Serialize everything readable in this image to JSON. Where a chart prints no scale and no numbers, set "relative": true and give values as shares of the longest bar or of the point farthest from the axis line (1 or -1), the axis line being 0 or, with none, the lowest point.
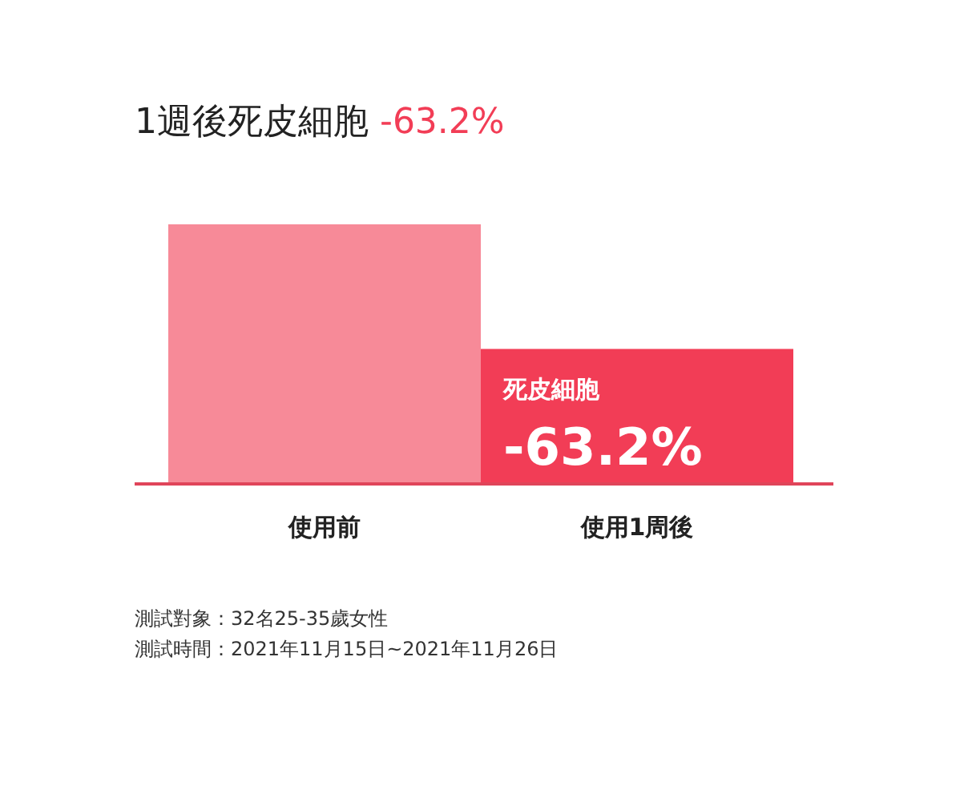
{
  "chart_data": {
    "type": "bar",
    "relative": true,
    "title": "1週後死皮細胞 -63.2%",
    "categories": [
      "使用前",
      "使用1周後"
    ],
    "values": [
      1,
      0.52
    ],
    "colors": [
      "#f78a98",
      "#f23d56"
    ],
    "annotations": [
      {
        "text": "死皮細胞",
        "x": "使用1周後",
        "y": 0.52
      },
      {
        "text": "-63.2%",
        "x": "使用1周後",
        "y": 0.52
      },
      "測試對象：32名25-35歲女性",
      "測試時間：2021年11月15日~2021年11月26日"
    ]
  }
}
